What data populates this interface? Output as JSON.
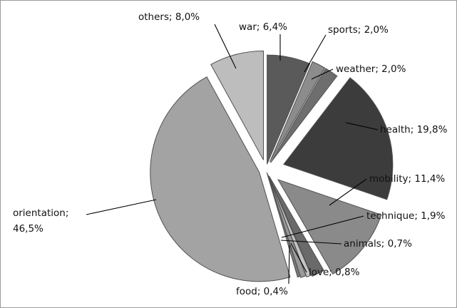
{
  "chart_data": {
    "type": "pie",
    "title": "",
    "slices": [
      {
        "category": "war",
        "value": 6.4,
        "label": "war; 6,4%",
        "color": "#5a5a5a"
      },
      {
        "category": "sports",
        "value": 2.0,
        "label": "sports; 2,0%",
        "color": "#8c8c8c"
      },
      {
        "category": "weather",
        "value": 2.0,
        "label": "weather; 2,0%",
        "color": "#6e6e6e"
      },
      {
        "category": "health",
        "value": 19.8,
        "label": "health; 19,8%",
        "color": "#3c3c3c"
      },
      {
        "category": "mobility",
        "value": 11.4,
        "label": "mobility; 11,4%",
        "color": "#8a8a8a"
      },
      {
        "category": "technique",
        "value": 1.9,
        "label": "technique; 1,9%",
        "color": "#6a6a6a"
      },
      {
        "category": "animals",
        "value": 0.7,
        "label": "animals; 0,7%",
        "color": "#c4c4c4"
      },
      {
        "category": "love",
        "value": 0.8,
        "label": "love; 0,8%",
        "color": "#9a9a9a"
      },
      {
        "category": "food",
        "value": 0.4,
        "label": "food; 0,4%",
        "color": "#7a7a7a"
      },
      {
        "category": "orientation",
        "value": 46.5,
        "label_lines": [
          "orientation;",
          "46,5%"
        ],
        "color": "#a3a3a3"
      },
      {
        "category": "others",
        "value": 8.0,
        "label": "others; 8,0%",
        "color": "#bdbdbd"
      }
    ]
  }
}
